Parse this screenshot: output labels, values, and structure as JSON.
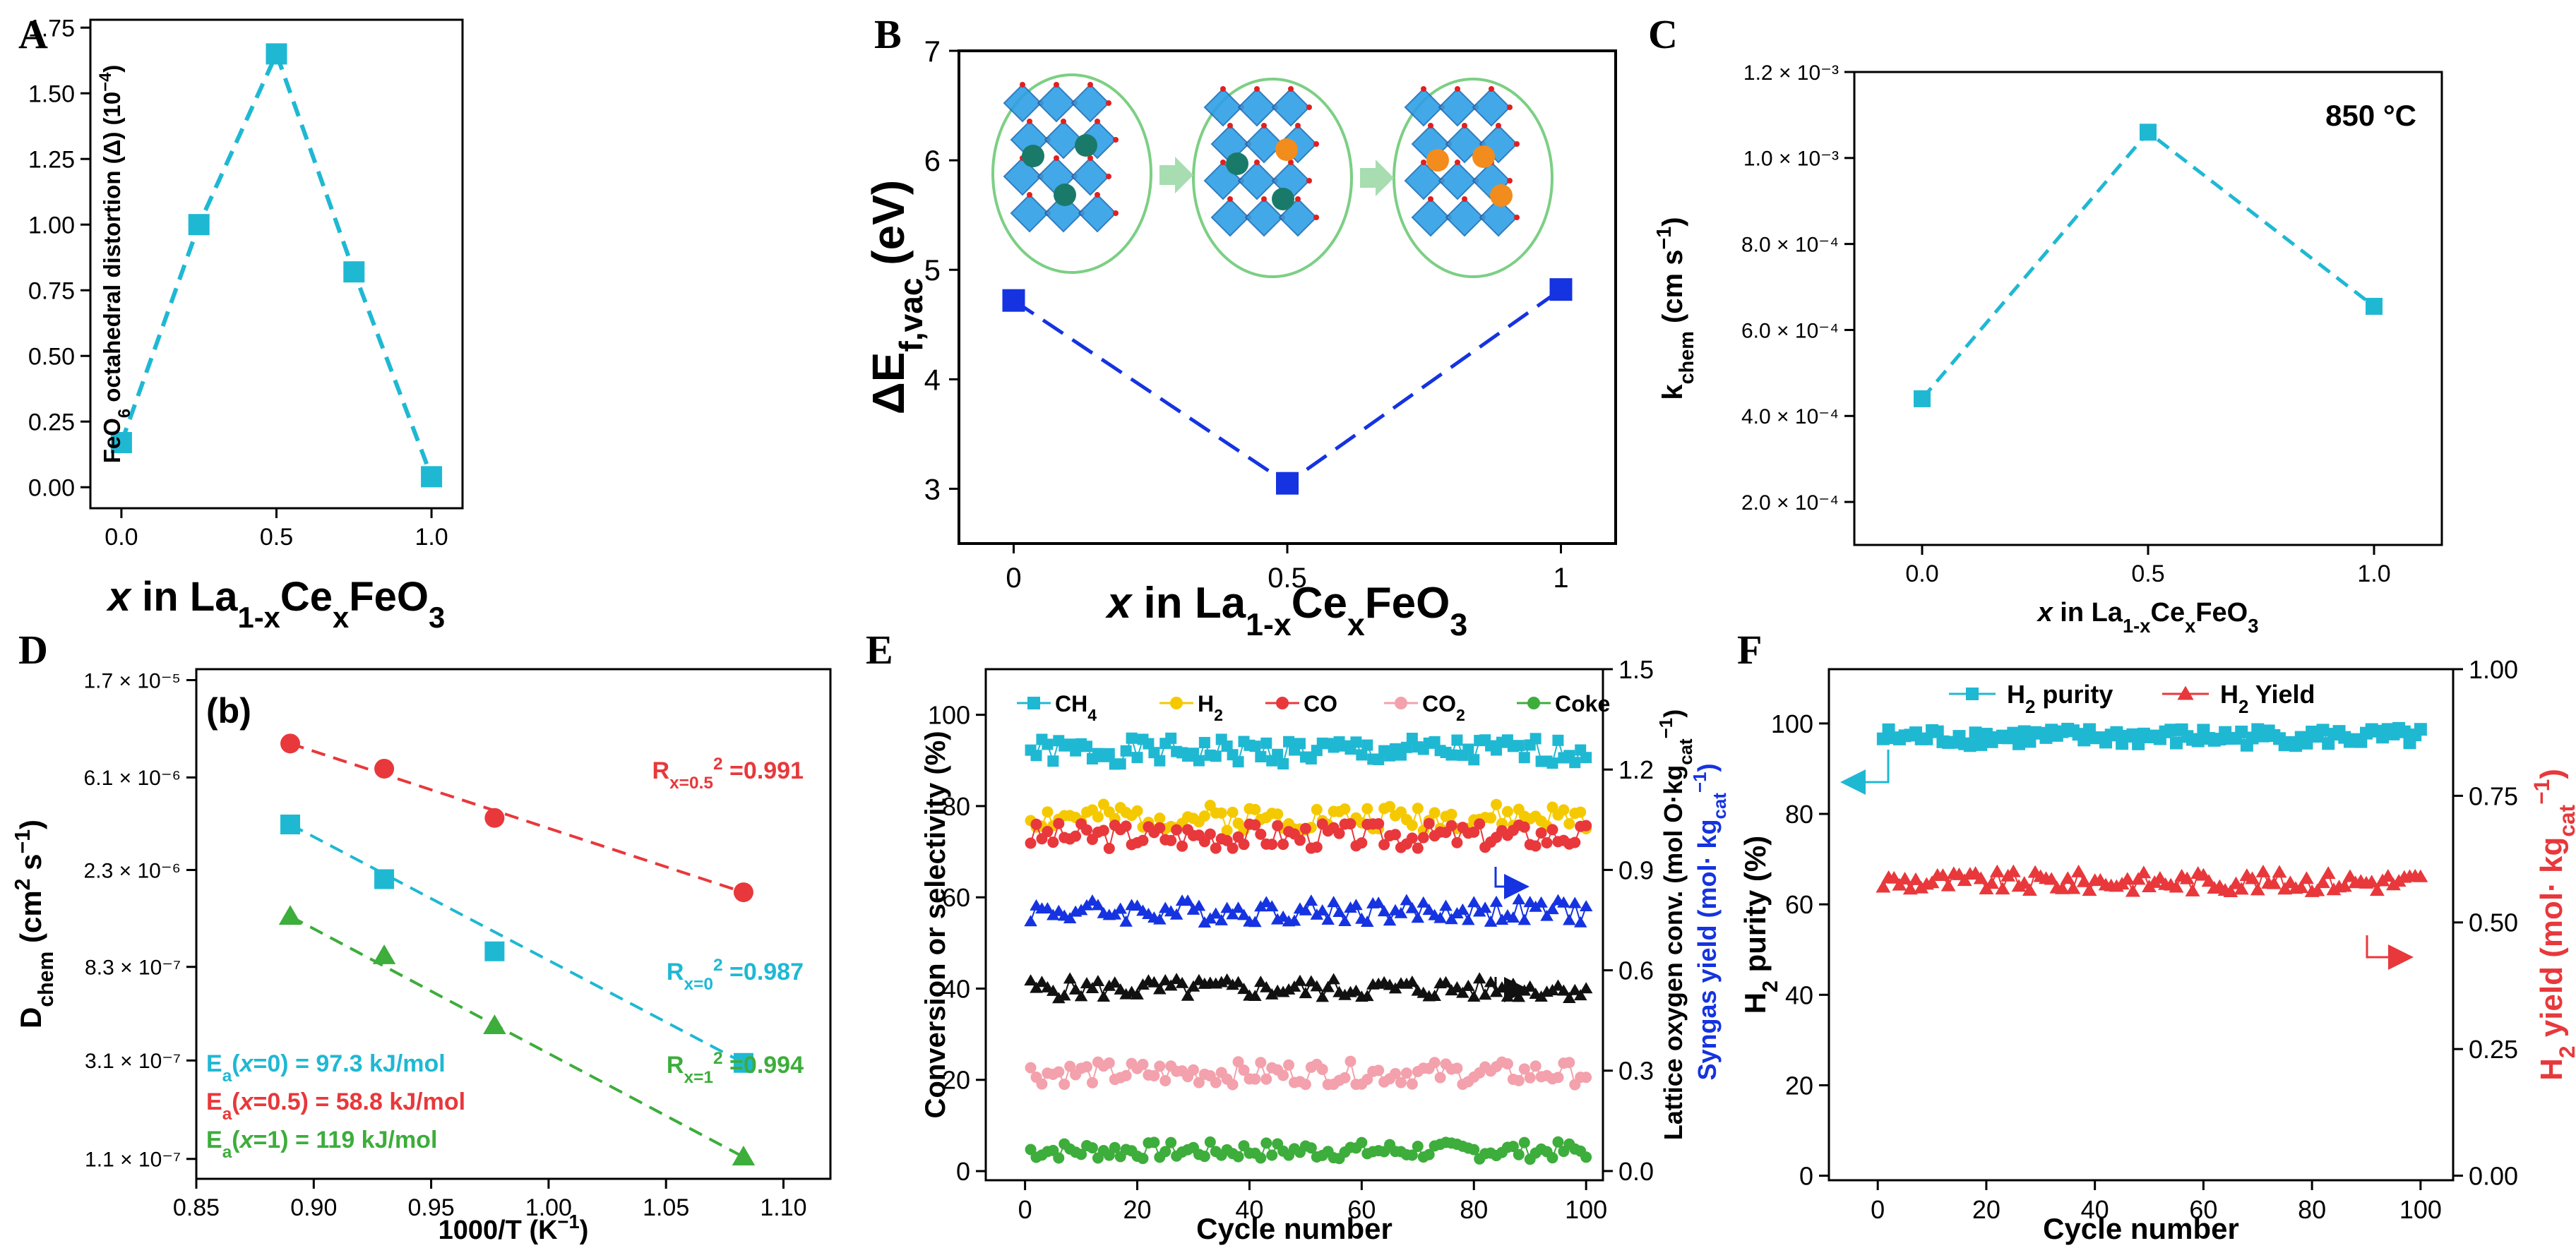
{
  "colors": {
    "cyan": "#1fb8d3",
    "blue": "#1533e0",
    "red": "#e8383b",
    "green": "#3dad3b",
    "yellow": "#f5c900",
    "pink": "#f3a1ac",
    "black": "#111111",
    "axis": "#000000",
    "ellipse": "#7ccf84",
    "crystal": "#2f9fe6",
    "arrow": "#a7ddb0"
  },
  "chart_data": [
    {
      "id": "A",
      "panel_label": "A",
      "type": "scatter",
      "title": "",
      "xlabel_prefix": "x",
      "xlabel_rest": " in La1-xCexFeO3",
      "ylabel": "FeO6 octahedral distortion (Δ) (10⁻⁴)",
      "xlim": [
        -0.1,
        1.1
      ],
      "ylim": [
        -0.08,
        1.78
      ],
      "xticks": [
        0,
        0.5,
        1
      ],
      "xtick_labels": [
        "0.0",
        "0.5",
        "1.0"
      ],
      "yticks": [
        0,
        0.25,
        0.5,
        0.75,
        1,
        1.25,
        1.5,
        1.75
      ],
      "ytick_labels": [
        "0.00",
        "0.25",
        "0.50",
        "0.75",
        "1.00",
        "1.25",
        "1.50",
        "1.75"
      ],
      "series": [
        {
          "name": "distortion",
          "color": "cyan",
          "marker": "square",
          "line": "dash",
          "x": [
            0,
            0.25,
            0.5,
            0.75,
            1
          ],
          "y": [
            0.17,
            1.0,
            1.65,
            0.82,
            0.04
          ]
        }
      ]
    },
    {
      "id": "B",
      "panel_label": "B",
      "type": "scatter",
      "xlabel_prefix": "x",
      "xlabel_rest": " in La1-xCexFeO3",
      "ylabel": "ΔEf,vac (eV)",
      "xlim": [
        -0.1,
        1.1
      ],
      "ylim": [
        2.5,
        7
      ],
      "xticks": [
        0,
        0.5,
        1
      ],
      "xtick_labels": [
        "0",
        "0.5",
        "1"
      ],
      "yticks": [
        3,
        4,
        5,
        6,
        7
      ],
      "ytick_labels": [
        "3",
        "4",
        "5",
        "6",
        "7"
      ],
      "series": [
        {
          "name": "vacancy formation energy",
          "color": "blue",
          "marker": "square",
          "line": "longdash",
          "x": [
            0,
            0.5,
            1
          ],
          "y": [
            4.72,
            3.05,
            4.82
          ]
        }
      ]
    },
    {
      "id": "C",
      "panel_label": "C",
      "type": "scatter",
      "annotation": "850 °C",
      "xlabel_prefix": "x",
      "xlabel_rest": " in La1-xCexFeO3",
      "ylabel": "kchem (cm s⁻¹)",
      "xlim": [
        -0.15,
        1.15
      ],
      "ylim": [
        0.0001,
        0.0012
      ],
      "xticks": [
        0,
        0.5,
        1
      ],
      "xtick_labels": [
        "0.0",
        "0.5",
        "1.0"
      ],
      "yticks": [
        0.0002,
        0.0004,
        0.0006,
        0.0008,
        0.001,
        0.0012
      ],
      "ytick_labels": [
        "2.0 × 10⁻⁴",
        "4.0 × 10⁻⁴",
        "6.0 × 10⁻⁴",
        "8.0 × 10⁻⁴",
        "1.0 × 10⁻³",
        "1.2 × 10⁻³"
      ],
      "series": [
        {
          "name": "kchem",
          "color": "cyan",
          "marker": "square",
          "line": "dash",
          "x": [
            0,
            0.5,
            1
          ],
          "y": [
            0.00044,
            0.00106,
            0.000655
          ]
        }
      ]
    },
    {
      "id": "D",
      "panel_label": "D",
      "type": "scatter",
      "inset_label": "(b)",
      "xlabel": "1000/T (K⁻¹)",
      "ylabel": "Dchem (cm² s⁻¹)",
      "xlim": [
        0.85,
        1.12
      ],
      "ylim": [
        -7.05,
        -4.72
      ],
      "y_scale": "log10",
      "xticks": [
        0.85,
        0.9,
        0.95,
        1.0,
        1.05,
        1.1
      ],
      "xtick_labels": [
        "0.85",
        "0.90",
        "0.95",
        "1.00",
        "1.05",
        "1.10"
      ],
      "yticks": [
        -6.959,
        -6.509,
        -6.081,
        -5.638,
        -5.215,
        -4.77
      ],
      "ytick_labels": [
        "1.1 × 10⁻⁷",
        "3.1 × 10⁻⁷",
        "8.3 × 10⁻⁷",
        "2.3 × 10⁻⁶",
        "6.1 × 10⁻⁶",
        "1.7 × 10⁻⁵"
      ],
      "series": [
        {
          "name": "x=0.5",
          "color": "red",
          "marker": "circle",
          "x": [
            0.89,
            0.93,
            0.977,
            1.083
          ],
          "y": [
            -5.06,
            -5.175,
            -5.4,
            -5.74
          ],
          "fit": [
            [
              0.89,
              -5.06
            ],
            [
              1.083,
              -5.74
            ]
          ],
          "r2_label": "Rx=0.5² =0.991"
        },
        {
          "name": "x=0",
          "color": "cyan",
          "marker": "square",
          "x": [
            0.89,
            0.93,
            0.977,
            1.083
          ],
          "y": [
            -5.43,
            -5.68,
            -6.01,
            -6.52
          ],
          "fit": [
            [
              0.89,
              -5.43
            ],
            [
              1.083,
              -6.52
            ]
          ],
          "r2_label": "Rx=0² =0.987"
        },
        {
          "name": "x=1",
          "color": "green",
          "marker": "triangle",
          "x": [
            0.89,
            0.93,
            0.977,
            1.083
          ],
          "y": [
            -5.85,
            -6.03,
            -6.35,
            -6.95
          ],
          "fit": [
            [
              0.89,
              -5.85
            ],
            [
              1.083,
              -6.95
            ]
          ],
          "r2_label": "Rx=1² =0.994"
        }
      ],
      "annotations": [
        "Ea(x=0) = 97.3 kJ/mol",
        "Ea(x=0.5) = 58.8 kJ/mol",
        "Ea(x=1) = 119 kJ/mol"
      ]
    },
    {
      "id": "E",
      "panel_label": "E",
      "type": "line",
      "xlabel": "Cycle number",
      "ylabel": "Conversion or selectivity (%)",
      "ylabel_right": "Lattice oxygen conv. (mol O·kgcat⁻¹)",
      "ylabel_right2": "Syngas yield (mol· kgcat⁻¹)",
      "xlim": [
        -7,
        103
      ],
      "ylim": [
        -2,
        110
      ],
      "ylim_right": [
        -0.0275,
        1.5
      ],
      "xticks": [
        0,
        20,
        40,
        60,
        80,
        100
      ],
      "xtick_labels": [
        "0",
        "20",
        "40",
        "60",
        "80",
        "100"
      ],
      "yticks": [
        0,
        20,
        40,
        60,
        80,
        100
      ],
      "ytick_labels": [
        "0",
        "20",
        "40",
        "60",
        "80",
        "100"
      ],
      "yticks_right": [
        0,
        0.3,
        0.6,
        0.9,
        1.2,
        1.5
      ],
      "ytick_labels_right": [
        "0.0",
        "0.3",
        "0.6",
        "0.9",
        "1.2",
        "1.5"
      ],
      "legend": [
        "CH4",
        "H2",
        "CO",
        "CO2",
        "Coke"
      ],
      "series": [
        {
          "name": "CH4",
          "color": "cyan",
          "marker": "square",
          "base": 92,
          "amp": 1.8,
          "seed": 1
        },
        {
          "name": "H2",
          "color": "yellow",
          "marker": "circle",
          "base": 77.5,
          "amp": 1.8,
          "seed": 2
        },
        {
          "name": "CO",
          "color": "red",
          "marker": "circle",
          "base": 73.5,
          "amp": 1.8,
          "seed": 3
        },
        {
          "name": "Syngas yield",
          "color": "blue",
          "marker": "triangle",
          "axis": "right",
          "base": 57,
          "amp": 1.6,
          "seed": 4
        },
        {
          "name": "Lattice oxygen conv.",
          "color": "black",
          "marker": "triangle",
          "axis": "right",
          "base": 40,
          "amp": 1.4,
          "seed": 5
        },
        {
          "name": "CO2",
          "color": "pink",
          "marker": "circle",
          "base": 21.5,
          "amp": 1.6,
          "seed": 6
        },
        {
          "name": "Coke",
          "color": "green",
          "marker": "circle",
          "base": 4.5,
          "amp": 1.2,
          "seed": 7
        }
      ]
    },
    {
      "id": "F",
      "panel_label": "F",
      "type": "line",
      "xlabel": "Cycle number",
      "ylabel": "H2 purity (%)",
      "ylabel_right": "H2 yield (mol· kgcat⁻¹)",
      "xlim": [
        -9,
        106
      ],
      "ylim": [
        -1,
        112
      ],
      "ylim_right": [
        -0.009,
        1.0
      ],
      "xticks": [
        0,
        20,
        40,
        60,
        80,
        100
      ],
      "xtick_labels": [
        "0",
        "20",
        "40",
        "60",
        "80",
        "100"
      ],
      "yticks": [
        0,
        20,
        40,
        60,
        80,
        100
      ],
      "ytick_labels": [
        "0",
        "20",
        "40",
        "60",
        "80",
        "100"
      ],
      "yticks_right": [
        0,
        0.25,
        0.5,
        0.75,
        1.0
      ],
      "ytick_labels_right": [
        "0.00",
        "0.25",
        "0.50",
        "0.75",
        "1.00"
      ],
      "legend": [
        "H2 purity",
        "H2 Yield"
      ],
      "series": [
        {
          "name": "H2 purity",
          "color": "cyan",
          "marker": "square",
          "base": 97,
          "amp": 1.3,
          "seed": 8
        },
        {
          "name": "H2 Yield",
          "color": "red",
          "marker": "triangle",
          "axis": "right",
          "base": 65,
          "amp": 1.5,
          "seed": 9
        }
      ]
    }
  ]
}
